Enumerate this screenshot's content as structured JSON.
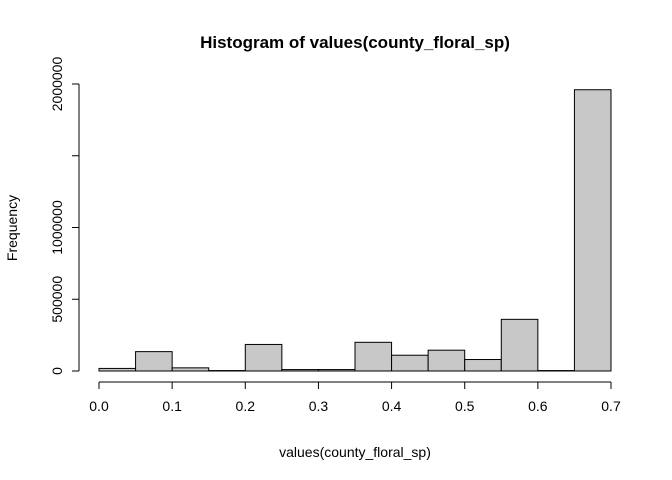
{
  "chart_data": {
    "type": "bar",
    "title": "Histogram of values(county_floral_sp)",
    "xlabel": "values(county_floral_sp)",
    "ylabel": "Frequency",
    "xlim": [
      0.0,
      0.7
    ],
    "ylim": [
      0,
      2000000
    ],
    "x_ticks": [
      0.0,
      0.1,
      0.2,
      0.3,
      0.4,
      0.5,
      0.6,
      0.7
    ],
    "x_tick_labels": [
      "0.0",
      "0.1",
      "0.2",
      "0.3",
      "0.4",
      "0.5",
      "0.6",
      "0.7"
    ],
    "y_ticks": [
      0,
      500000,
      1000000,
      1500000,
      2000000
    ],
    "y_tick_labels": [
      "0",
      "500000",
      "1000000",
      "",
      "2000000"
    ],
    "bin_edges": [
      0.0,
      0.05,
      0.1,
      0.15,
      0.2,
      0.25,
      0.3,
      0.35,
      0.4,
      0.45,
      0.5,
      0.55,
      0.6,
      0.65,
      0.7
    ],
    "values": [
      18000,
      135000,
      22000,
      3000,
      185000,
      10000,
      10000,
      200000,
      110000,
      145000,
      80000,
      360000,
      3000,
      1960000
    ],
    "bar_color": "#c8c8c8",
    "stroke_color": "#000000",
    "grid": false,
    "legend": "none"
  }
}
